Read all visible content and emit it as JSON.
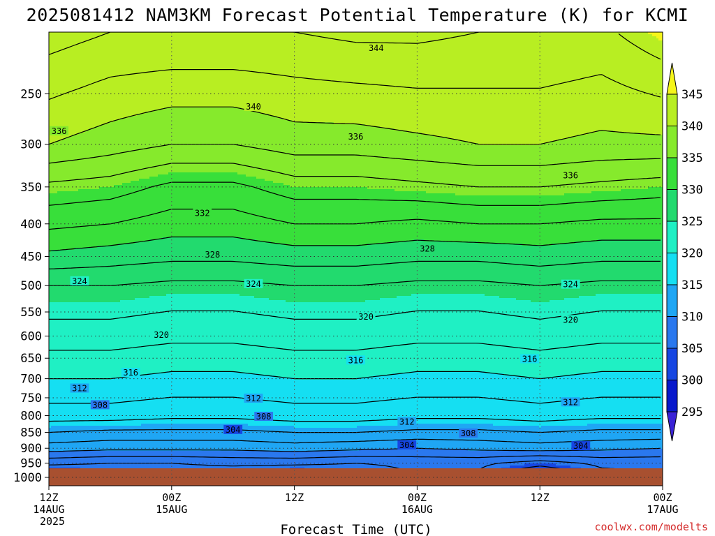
{
  "chart_data": {
    "type": "contour",
    "title": "2025081412 NAM3KM Forecast Potential Temperature (K) for KCMI",
    "xlabel": "Forecast Time (UTC)",
    "ylabel": "",
    "credit": "coolwx.com/modelts",
    "y_scale": "log",
    "y_inverted": true,
    "ylim": [
      1000,
      200
    ],
    "y_ticks": [
      250,
      300,
      350,
      400,
      450,
      500,
      550,
      600,
      650,
      700,
      750,
      800,
      850,
      900,
      950,
      1000
    ],
    "x_ticks": [
      {
        "hours": 0,
        "l1": "12Z",
        "l2": "14AUG",
        "l3": "2025"
      },
      {
        "hours": 12,
        "l1": "00Z",
        "l2": "15AUG",
        "l3": ""
      },
      {
        "hours": 24,
        "l1": "12Z",
        "l2": "",
        "l3": ""
      },
      {
        "hours": 36,
        "l1": "00Z",
        "l2": "16AUG",
        "l3": ""
      },
      {
        "hours": 48,
        "l1": "12Z",
        "l2": "",
        "l3": ""
      },
      {
        "hours": 60,
        "l1": "00Z",
        "l2": "17AUG",
        "l3": ""
      }
    ],
    "xlim": [
      0,
      60
    ],
    "grid": true,
    "colorbar": {
      "levels": [
        295,
        300,
        305,
        310,
        315,
        320,
        325,
        330,
        335,
        340,
        345
      ],
      "colors": [
        "#3a22d6",
        "#0818cc",
        "#1646e2",
        "#2a78ee",
        "#1fa6f4",
        "#15dff2",
        "#1ff0c4",
        "#22da6e",
        "#38df3a",
        "#86ea2c",
        "#b8ee22",
        "#f5f51a"
      ]
    },
    "ground_color": "#a85030",
    "contour_levels": [
      304,
      306,
      308,
      310,
      312,
      314,
      316,
      318,
      320,
      322,
      324,
      326,
      328,
      330,
      332,
      334,
      336,
      338,
      340,
      342,
      344
    ],
    "contour_labels": [
      {
        "value": 344,
        "hours": 32,
        "p": 212
      },
      {
        "value": 340,
        "hours": 20,
        "p": 262
      },
      {
        "value": 336,
        "hours": 1,
        "p": 286
      },
      {
        "value": 336,
        "hours": 30,
        "p": 292
      },
      {
        "value": 336,
        "hours": 51,
        "p": 336
      },
      {
        "value": 332,
        "hours": 15,
        "p": 385
      },
      {
        "value": 328,
        "hours": 16,
        "p": 447
      },
      {
        "value": 328,
        "hours": 37,
        "p": 438
      },
      {
        "value": 324,
        "hours": 3,
        "p": 492
      },
      {
        "value": 324,
        "hours": 20,
        "p": 497
      },
      {
        "value": 324,
        "hours": 51,
        "p": 498
      },
      {
        "value": 320,
        "hours": 31,
        "p": 560
      },
      {
        "value": 320,
        "hours": 11,
        "p": 598
      },
      {
        "value": 320,
        "hours": 51,
        "p": 566
      },
      {
        "value": 316,
        "hours": 30,
        "p": 655
      },
      {
        "value": 316,
        "hours": 8,
        "p": 685
      },
      {
        "value": 316,
        "hours": 47,
        "p": 652
      },
      {
        "value": 312,
        "hours": 3,
        "p": 725
      },
      {
        "value": 312,
        "hours": 20,
        "p": 752
      },
      {
        "value": 312,
        "hours": 51,
        "p": 762
      },
      {
        "value": 312,
        "hours": 35,
        "p": 818
      },
      {
        "value": 308,
        "hours": 5,
        "p": 770
      },
      {
        "value": 308,
        "hours": 21,
        "p": 803
      },
      {
        "value": 308,
        "hours": 41,
        "p": 853
      },
      {
        "value": 304,
        "hours": 18,
        "p": 842
      },
      {
        "value": 304,
        "hours": 35,
        "p": 890
      },
      {
        "value": 304,
        "hours": 52,
        "p": 893
      }
    ],
    "profiles": [
      {
        "hours": 0,
        "theta": [
          302.5,
          306.5,
          311,
          314,
          317,
          320,
          323,
          326,
          329.5,
          332.5,
          335.5,
          340,
          345
        ]
      },
      {
        "hours": 6,
        "theta": [
          303.5,
          306,
          310.5,
          313.5,
          317,
          320,
          323,
          326,
          329,
          332,
          335,
          339,
          344
        ]
      },
      {
        "hours": 12,
        "theta": [
          304.5,
          306,
          310.5,
          313.5,
          316.5,
          319.5,
          322.5,
          325.5,
          328.5,
          331,
          333.5,
          338,
          344
        ]
      },
      {
        "hours": 18,
        "theta": [
          304,
          306.5,
          310.5,
          313.5,
          316.5,
          319.5,
          322.5,
          325.5,
          328.5,
          331,
          333.5,
          338,
          344
        ]
      },
      {
        "hours": 24,
        "theta": [
          302.5,
          306.5,
          311,
          314,
          317,
          320,
          323,
          326,
          329,
          332,
          335,
          339,
          344
        ]
      },
      {
        "hours": 30,
        "theta": [
          304,
          306,
          310.5,
          314,
          317,
          320,
          323,
          326,
          329,
          332,
          335,
          339,
          344.5
        ]
      },
      {
        "hours": 36,
        "theta": [
          306,
          306.5,
          310,
          313.5,
          316.5,
          319.5,
          322.5,
          325.5,
          328.5,
          331.5,
          335.5,
          339.5,
          344.5
        ]
      },
      {
        "hours": 42,
        "theta": [
          305.5,
          306.5,
          310.5,
          313.5,
          316.5,
          319.5,
          322.5,
          325.5,
          328.5,
          332,
          336,
          340,
          344
        ]
      },
      {
        "hours": 48,
        "theta": [
          300,
          305,
          311,
          314,
          317,
          320,
          323,
          326,
          329,
          332,
          336,
          340,
          344
        ]
      },
      {
        "hours": 54,
        "theta": [
          305,
          306.5,
          310.5,
          313.5,
          316.5,
          319.5,
          322.5,
          325.5,
          328.5,
          331.5,
          335.5,
          339.5,
          343.5
        ]
      },
      {
        "hours": 60,
        "theta": [
          306,
          306.5,
          310,
          313.5,
          316.5,
          319.5,
          322.5,
          325.5,
          328.5,
          331.5,
          335,
          339.5,
          345.5
        ]
      }
    ],
    "profile_pressures": [
      1000,
      950,
      900,
      850,
      800,
      700,
      600,
      500,
      450,
      400,
      350,
      300,
      200
    ]
  }
}
